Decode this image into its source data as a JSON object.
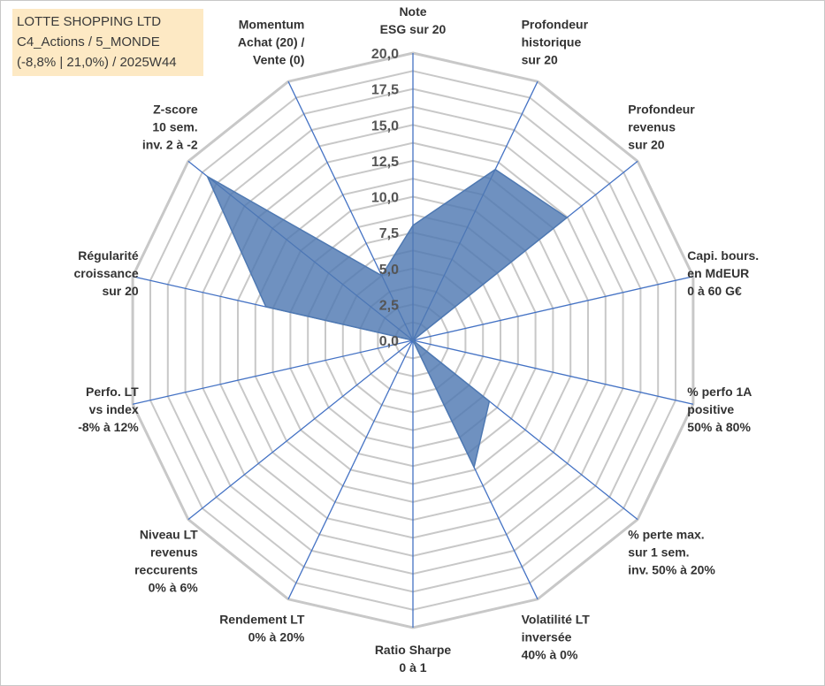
{
  "title_box": {
    "line1": "LOTTE SHOPPING LTD",
    "line2": "C4_Actions / 5_MONDE",
    "line3": "(-8,8% | 21,0%) / 2025W44"
  },
  "chart_data": {
    "type": "radar",
    "title": "LOTTE SHOPPING LTD",
    "rmin": 0,
    "rmax": 20,
    "grid_step": 1.25,
    "ticks": [
      "0,0",
      "2,5",
      "5,0",
      "7,5",
      "10,0",
      "12,5",
      "15,0",
      "17,5",
      "20,0"
    ],
    "axes": [
      [
        "Note",
        "ESG sur 20"
      ],
      [
        "Profondeur",
        "historique",
        "sur 20"
      ],
      [
        "Profondeur",
        "revenus",
        "sur 20"
      ],
      [
        "Capi. bours.",
        "en MdEUR",
        "0 à 60 G€"
      ],
      [
        "% perfo 1A",
        "positive",
        "50% à 80%"
      ],
      [
        "% perte max.",
        "sur 1 sem.",
        "inv. 50% à 20%"
      ],
      [
        "Volatilité LT",
        "inversée",
        "40% à 0%"
      ],
      [
        "Ratio Sharpe",
        "0 à 1"
      ],
      [
        "Rendement LT",
        "0% à 20%"
      ],
      [
        "Niveau LT",
        "revenus",
        "reccurents",
        "0% à 6%"
      ],
      [
        "Perfo. LT",
        "vs index",
        "-8% à 12%"
      ],
      [
        "Régularité",
        "croissance",
        "sur 20"
      ],
      [
        "Z-score",
        "10 sem.",
        "inv. 2 à -2"
      ],
      [
        "Momentum",
        "Achat (20) /",
        "Vente (0)"
      ]
    ],
    "series": [
      {
        "name": "LOTTE SHOPPING LTD",
        "values": [
          8,
          13.2,
          13.7,
          0,
          0,
          6.8,
          9.8,
          0,
          0,
          0,
          0,
          10.5,
          18.3,
          5
        ],
        "color": "#4f79b2"
      }
    ],
    "colors": {
      "grid": "#c8c8c8",
      "spokes": "#4472c4",
      "fill": "#4f79b2",
      "title_bg": "#fde9c4"
    }
  }
}
